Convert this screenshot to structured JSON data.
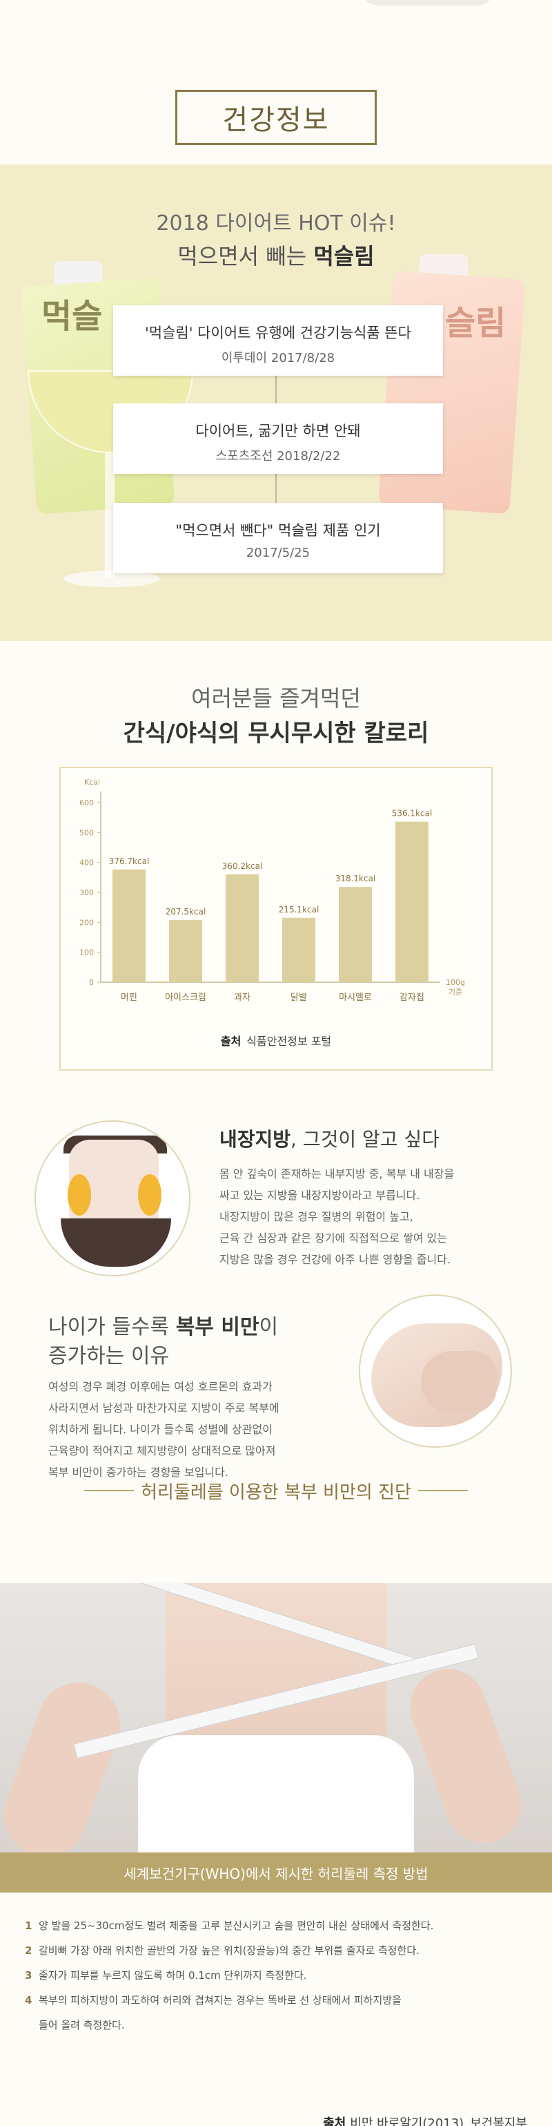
{
  "header": {
    "title": "건강정보"
  },
  "diet": {
    "line1": "2018 다이어트 HOT 이슈!",
    "line2_prefix": "먹으면서 빼는 ",
    "line2_bold": "먹슬림",
    "pouch_left_label": "먹슬",
    "pouch_right_label": "슬림",
    "news": [
      {
        "headline": "'먹슬림' 다이어트 유행에 건강기능식품 뜬다",
        "source": "이투데이 2017/8/28"
      },
      {
        "headline": "다이어트, 굶기만 하면 안돼",
        "source": "스포츠조선 2018/2/22"
      },
      {
        "headline": "\"먹으면서 뺀다\" 먹슬림 제품 인기",
        "source": "2017/5/25"
      }
    ]
  },
  "calories": {
    "line1": "여러분들 즐겨먹던",
    "line2": "간식/야식의 무시무시한 칼로리",
    "source_label": "출처",
    "source_text": "식품안전정보 포털"
  },
  "chart_data": {
    "type": "bar",
    "title": "",
    "xlabel": "100g 기준",
    "ylabel": "Kcal",
    "ylim": [
      0,
      600
    ],
    "yticks": [
      0,
      100,
      200,
      300,
      400,
      500,
      600
    ],
    "categories": [
      "머핀",
      "아이스크림",
      "과자",
      "닭발",
      "마시멜로",
      "감자칩"
    ],
    "values": [
      376.7,
      207.5,
      360.2,
      215.1,
      318.1,
      536.1
    ],
    "data_labels": [
      "376.7kcal",
      "207.5kcal",
      "360.2kcal",
      "215.1kcal",
      "318.1kcal",
      "536.1kcal"
    ],
    "bar_color": "#dcd0a0",
    "grid": false
  },
  "visceral": {
    "title_bold": "내장지방",
    "title_rest": ", 그것이 알고 싶다",
    "lines": [
      "몸 안 깊숙이 존재하는 내부지방 중, 복부 내 내장을",
      "싸고 있는 지방을 내장지방이라고 부릅니다.",
      "내장지방이 많은 경우 질병의 위험이 높고,",
      "근육 간 심장과 같은 장기에 직접적으로 쌓여 있는",
      "지방은 많을 경우 건강에 아주 나쁜 영향을 줍니다."
    ]
  },
  "age": {
    "title_prefix": "나이가 들수록 ",
    "title_bold": "복부 비만",
    "title_suffix": "이",
    "title_line2": "증가하는 이유",
    "lines": [
      "여성의 경우 폐경 이후에는 여성 호르몬의 효과가",
      "사라지면서 남성과 마찬가지로 지방이 주로 복부에",
      "위치하게 됩니다. 나이가 들수록 성별에 상관없이",
      "근육량이 적어지고 체지방량이 상대적으로 많아져",
      "복부 비만이 증가하는 경향을 보입니다."
    ]
  },
  "waist": {
    "heading": "허리둘레를 이용한 복부 비만의 진단",
    "who_bar": "세계보건기구(WHO)에서 제시한 허리둘레 측정 방법",
    "rules": [
      {
        "num": "1",
        "text": "양 발을 25~30cm정도 벌려 체중을 고루 분산시키고 숨을 편안히 내쉰 상태에서 측정한다."
      },
      {
        "num": "2",
        "text": "갈비뼈 가장 아래 위치한 골반의 가장 높은 위치(장골능)의 중간 부위를 줄자로 측정한다."
      },
      {
        "num": "3",
        "text": "줄자가 피부를 누르지 않도록 하며 0.1cm 단위까지 측정한다."
      },
      {
        "num": "4",
        "text": "복부의 피하지방이 과도하여 허리와 겹쳐지는 경우는 똑바로 선 상태에서 피하지방을"
      }
    ],
    "rule4_cont": "들어 올려 측정한다.",
    "source_label": "출처",
    "source_text": "비만 바로알기(2013)_보건복지부"
  }
}
